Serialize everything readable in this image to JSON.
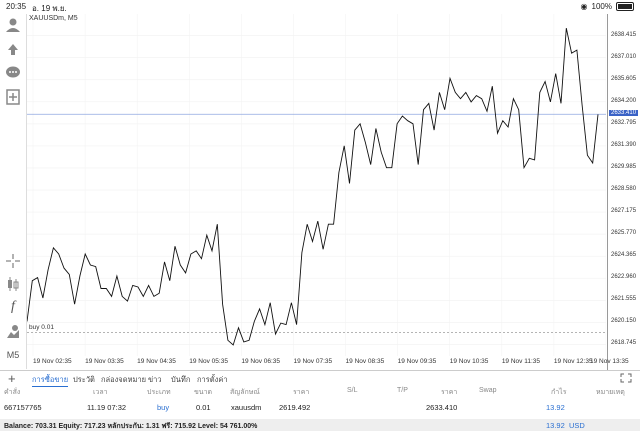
{
  "status_bar": {
    "time": "20:35",
    "date": "อ. 19 พ.ย.",
    "battery": "100%"
  },
  "chart": {
    "title": "XAUUSDm, M5",
    "current_price": "2633.410",
    "order_label": "buy 0.01"
  },
  "chart_data": {
    "type": "line",
    "symbol": "XAUUSDm",
    "timeframe": "M5",
    "y_ticks": [
      "2638.415",
      "2637.010",
      "2635.605",
      "2634.200",
      "2632.795",
      "2631.390",
      "2629.985",
      "2628.580",
      "2627.175",
      "2625.770",
      "2624.365",
      "2622.960",
      "2621.555",
      "2620.150",
      "2618.745"
    ],
    "x_ticks": [
      "19 Nov 02:35",
      "19 Nov 03:35",
      "19 Nov 04:35",
      "19 Nov 05:35",
      "19 Nov 06:35",
      "19 Nov 07:35",
      "19 Nov 08:35",
      "19 Nov 09:35",
      "19 Nov 10:35",
      "19 Nov 11:35",
      "19 Nov 12:35",
      "19 Nov 13:35"
    ],
    "ylim": [
      2618.0,
      2639.8
    ],
    "current_price": 2633.41,
    "buy_level": 2619.492,
    "values": [
      2620.2,
      2622.8,
      2623.0,
      2621.7,
      2623.5,
      2624.9,
      2624.5,
      2623.6,
      2623.2,
      2621.3,
      2623.1,
      2624.5,
      2623.8,
      2623.7,
      2622.3,
      2622.3,
      2621.8,
      2623.1,
      2621.8,
      2621.5,
      2622.5,
      2622.4,
      2621.8,
      2622.5,
      2621.8,
      2622.0,
      2624.0,
      2622.8,
      2625.0,
      2623.8,
      2623.3,
      2624.5,
      2624.7,
      2624.2,
      2625.7,
      2624.7,
      2626.4,
      2621.3,
      2619.0,
      2618.7,
      2619.8,
      2618.9,
      2619.0,
      2620.2,
      2621.0,
      2620.0,
      2621.4,
      2619.4,
      2620.1,
      2620.0,
      2621.4,
      2620.0,
      2624.6,
      2626.4,
      2625.3,
      2626.6,
      2624.8,
      2626.4,
      2626.4,
      2629.7,
      2631.4,
      2629.0,
      2632.4,
      2632.8,
      2631.6,
      2630.2,
      2632.5,
      2631.0,
      2630.0,
      2630.0,
      2632.8,
      2633.3,
      2633.0,
      2632.8,
      2630.2,
      2633.7,
      2634.1,
      2632.4,
      2634.8,
      2633.7,
      2635.7,
      2634.8,
      2634.4,
      2634.8,
      2634.2,
      2634.6,
      2634.4,
      2633.6,
      2635.2,
      2632.2,
      2633.0,
      2632.6,
      2634.4,
      2633.7,
      2630.0,
      2630.6,
      2630.5,
      2634.8,
      2635.5,
      2634.2,
      2636.0,
      2634.1,
      2638.9,
      2637.3,
      2637.5,
      2634.0,
      2630.8,
      2630.3,
      2633.4
    ]
  },
  "tabs": [
    "การซื้อขาย",
    "ประวัติ",
    "กล่องจดหมาย",
    "ข่าว",
    "บันทึก",
    "การตั้งค่า"
  ],
  "table": {
    "headers": [
      "คำสั่ง",
      "เวลา",
      "ประเภท",
      "ขนาด",
      "สัญลักษณ์",
      "ราคา",
      "S/L",
      "T/P",
      "ราคา",
      "Swap",
      "กำไร",
      "หมายเหตุ"
    ],
    "row": {
      "order": "667157765",
      "time": "11.19 07:32",
      "type": "buy",
      "size": "0.01",
      "symbol": "xauusdm",
      "price_open": "2619.492",
      "price_current": "2633.410",
      "profit": "13.92"
    }
  },
  "balance": {
    "text": "Balance: 703.31  Equity: 717.23  หลักประกัน: 1.31  ฟรี: 715.92  Level: 54 761.00%",
    "profit": "13.92",
    "currency": "USD"
  },
  "colors": {
    "accent": "#2a6fd1",
    "current_line": "#3a62c6"
  }
}
